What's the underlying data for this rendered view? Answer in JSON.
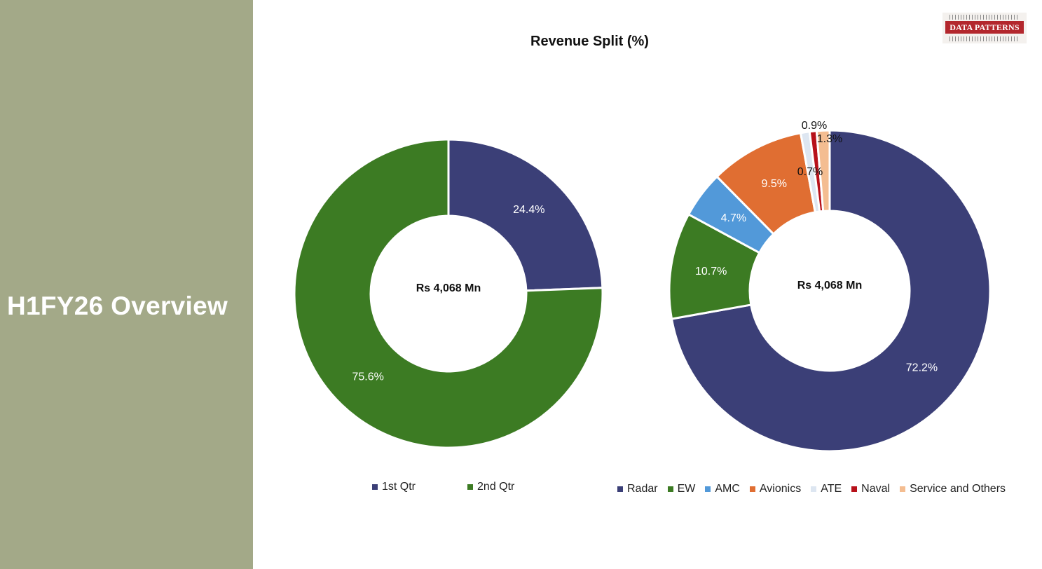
{
  "sidebar": {
    "title": "H1FY26 Overview"
  },
  "logo": {
    "text": "DATA PATTERNS"
  },
  "chart_title": "Revenue Split (%)",
  "chart_data": [
    {
      "type": "pie",
      "title": "Revenue Split (%)",
      "center_label": "Rs 4,068 Mn",
      "categories": [
        "1st Qtr",
        "2nd Qtr"
      ],
      "values": [
        24.4,
        75.6
      ],
      "labels": [
        "24.4%",
        "75.6%"
      ],
      "colors": [
        "#3b3f77",
        "#3c7b23"
      ],
      "label_colors": [
        "#ffffff",
        "#ffffff"
      ],
      "legend_position": "bottom"
    },
    {
      "type": "pie",
      "center_label": "Rs 4,068 Mn",
      "categories": [
        "Radar",
        "EW",
        "AMC",
        "Avionics",
        "ATE",
        "Naval",
        "Service and Others"
      ],
      "values": [
        72.2,
        10.7,
        4.7,
        9.5,
        0.9,
        0.7,
        1.3
      ],
      "labels": [
        "72.2%",
        "10.7%",
        "4.7%",
        "9.5%",
        "0.9%",
        "0.7%",
        "1.3%"
      ],
      "colors": [
        "#3b3f77",
        "#3c7b23",
        "#5299d9",
        "#e06e32",
        "#dde6f1",
        "#b7111a",
        "#f4bd91"
      ],
      "label_colors": [
        "#ffffff",
        "#ffffff",
        "#ffffff",
        "#ffffff",
        "#111111",
        "#111111",
        "#111111"
      ],
      "legend_position": "bottom"
    }
  ]
}
